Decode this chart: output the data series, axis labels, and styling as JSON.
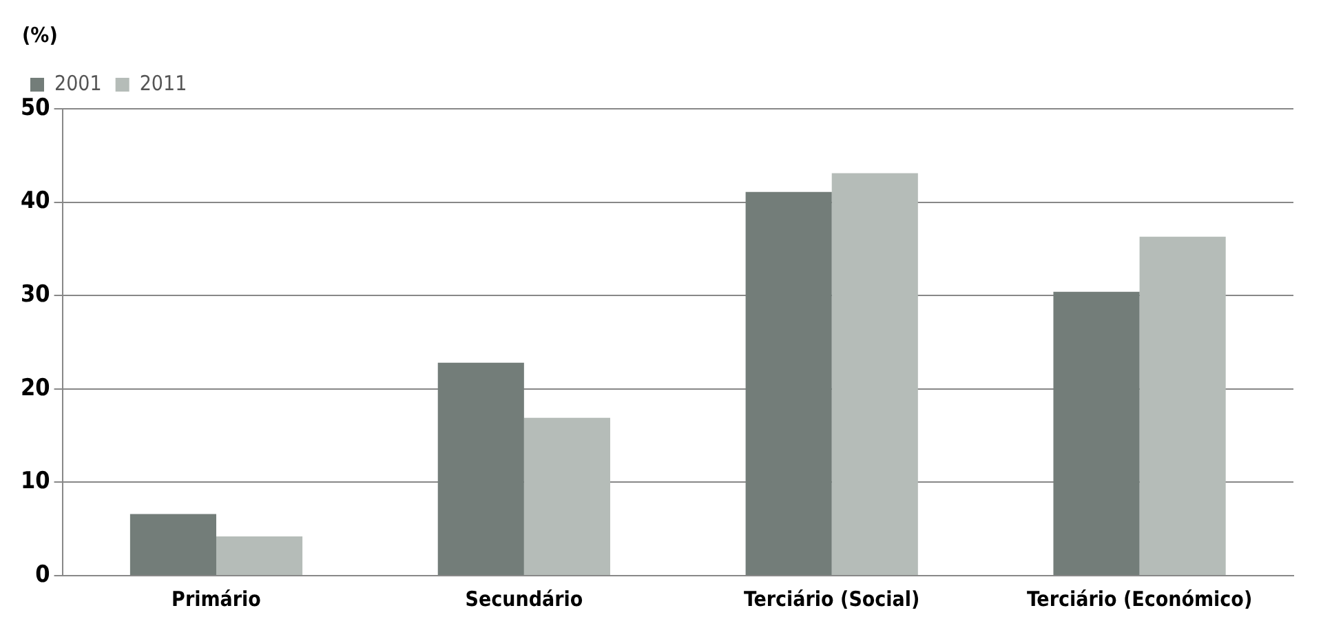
{
  "chart_data": {
    "type": "bar",
    "ylabel": "(%)",
    "categories": [
      "Primário",
      "Secundário",
      "Terciário (Social)",
      "Terciário (Económico)"
    ],
    "series": [
      {
        "name": "2001",
        "color": "#737d79",
        "values": [
          6.6,
          22.8,
          41.1,
          30.4
        ]
      },
      {
        "name": "2011",
        "color": "#b5bcb8",
        "values": [
          4.2,
          16.9,
          43.1,
          36.3
        ]
      }
    ],
    "ylim": [
      0,
      50
    ],
    "yticks": [
      0,
      10,
      20,
      30,
      40,
      50
    ],
    "grid": "y",
    "legend": "top left"
  }
}
